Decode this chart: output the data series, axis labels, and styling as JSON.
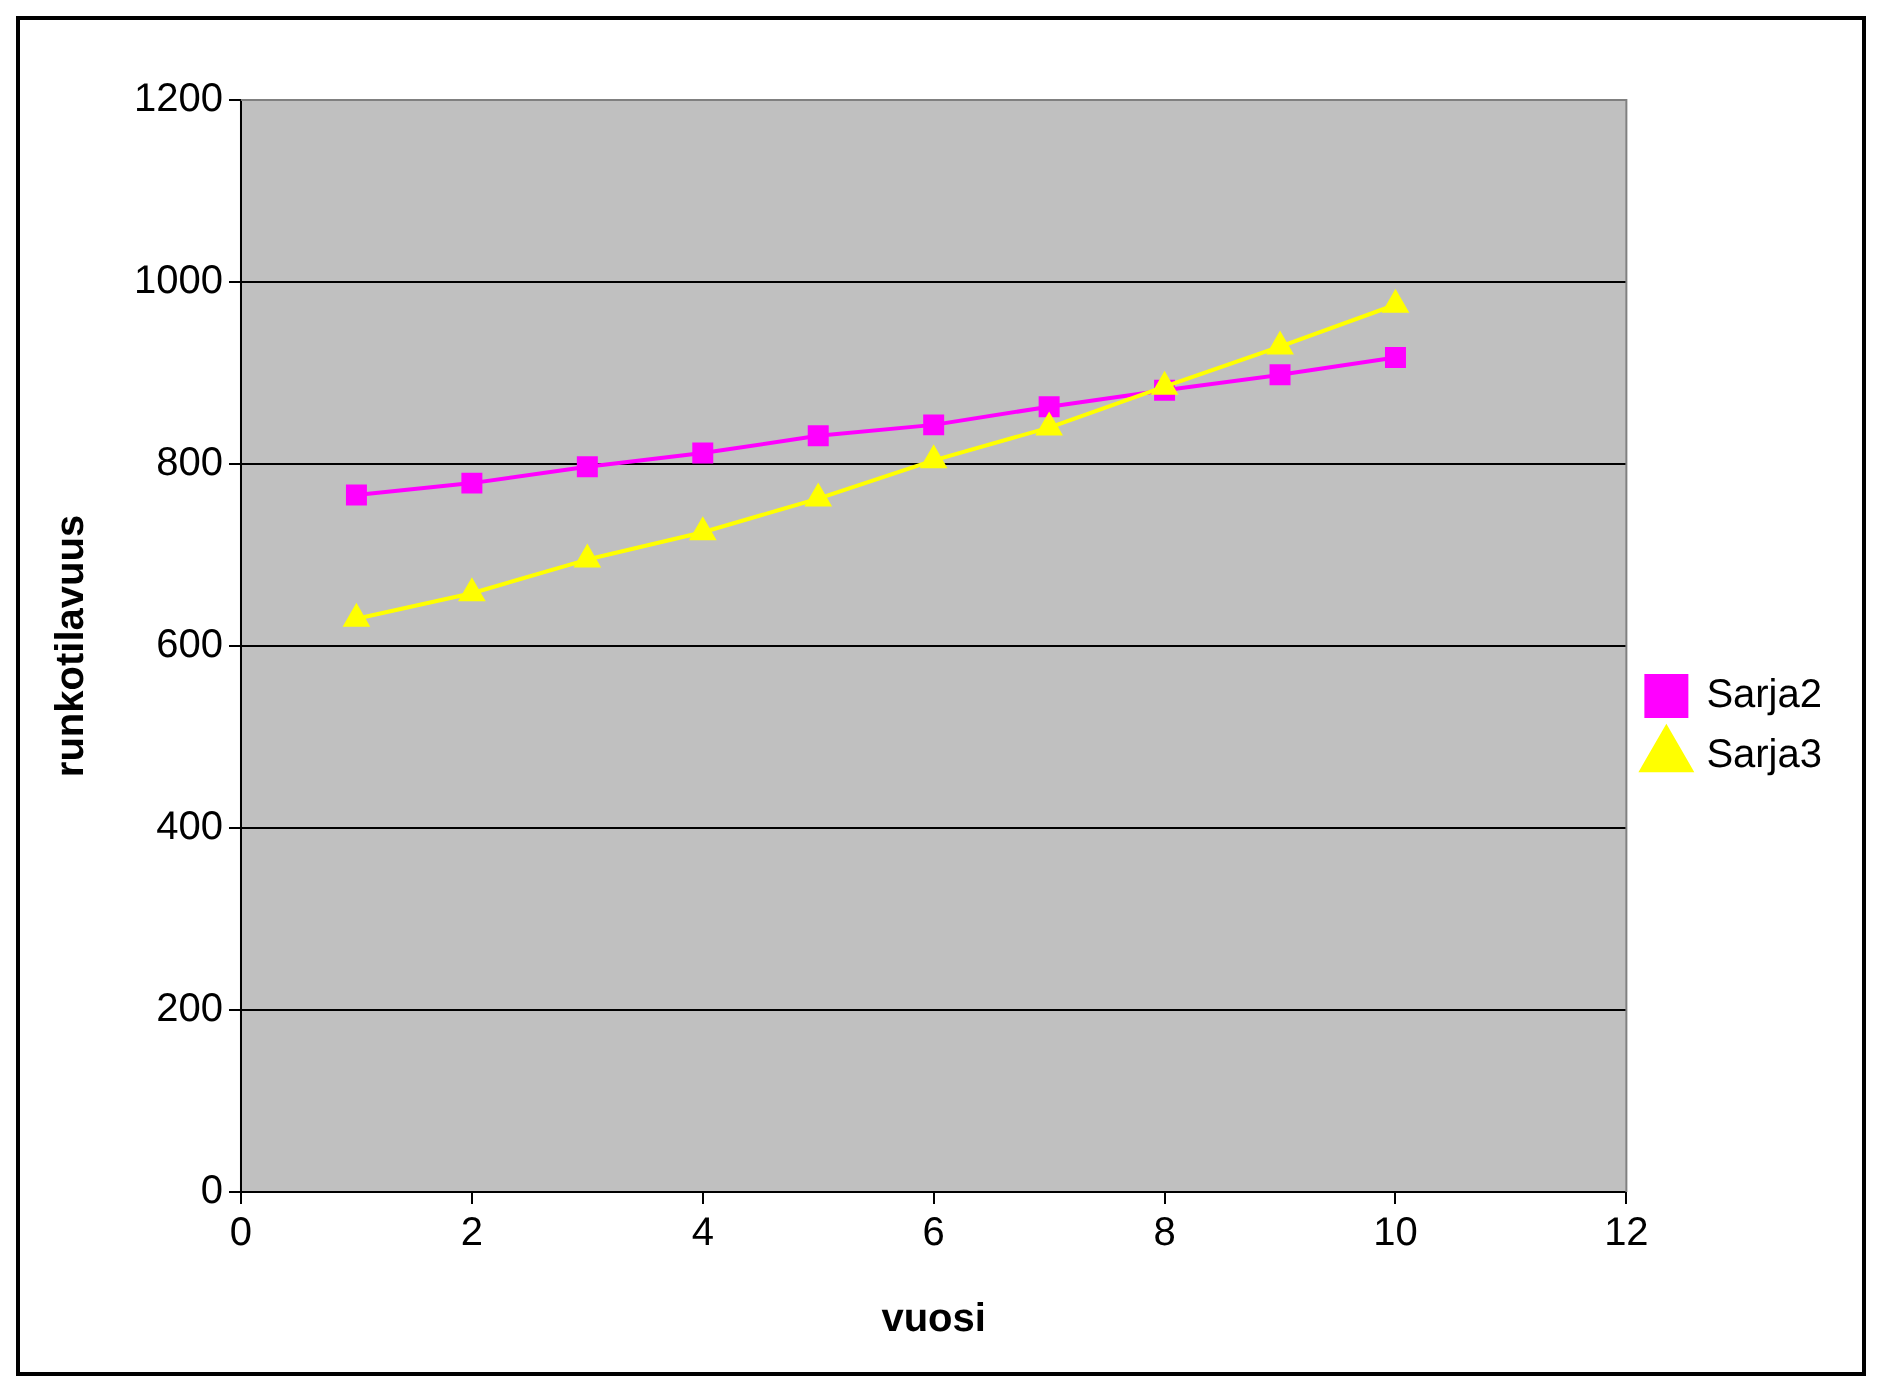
{
  "chart_data": {
    "type": "line",
    "xlabel": "vuosi",
    "ylabel": "runkotilavuus",
    "x": [
      1,
      2,
      3,
      4,
      5,
      6,
      7,
      8,
      9,
      10
    ],
    "series": [
      {
        "name": "Sarja2",
        "color": "#ff00ff",
        "marker": "square",
        "values": [
          766,
          779,
          797,
          812,
          831,
          843,
          863,
          881,
          898,
          917
        ]
      },
      {
        "name": "Sarja3",
        "color": "#ffff00",
        "marker": "triangle",
        "values": [
          630,
          658,
          695,
          725,
          762,
          804,
          840,
          885,
          929,
          975
        ]
      }
    ],
    "xlim": [
      0,
      12
    ],
    "xticks": [
      0,
      2,
      4,
      6,
      8,
      10,
      12
    ],
    "ylim": [
      0,
      1200
    ],
    "yticks": [
      0,
      200,
      400,
      600,
      800,
      1000,
      1200
    ],
    "grid": "y",
    "legend": "right",
    "line_style": "solid"
  }
}
